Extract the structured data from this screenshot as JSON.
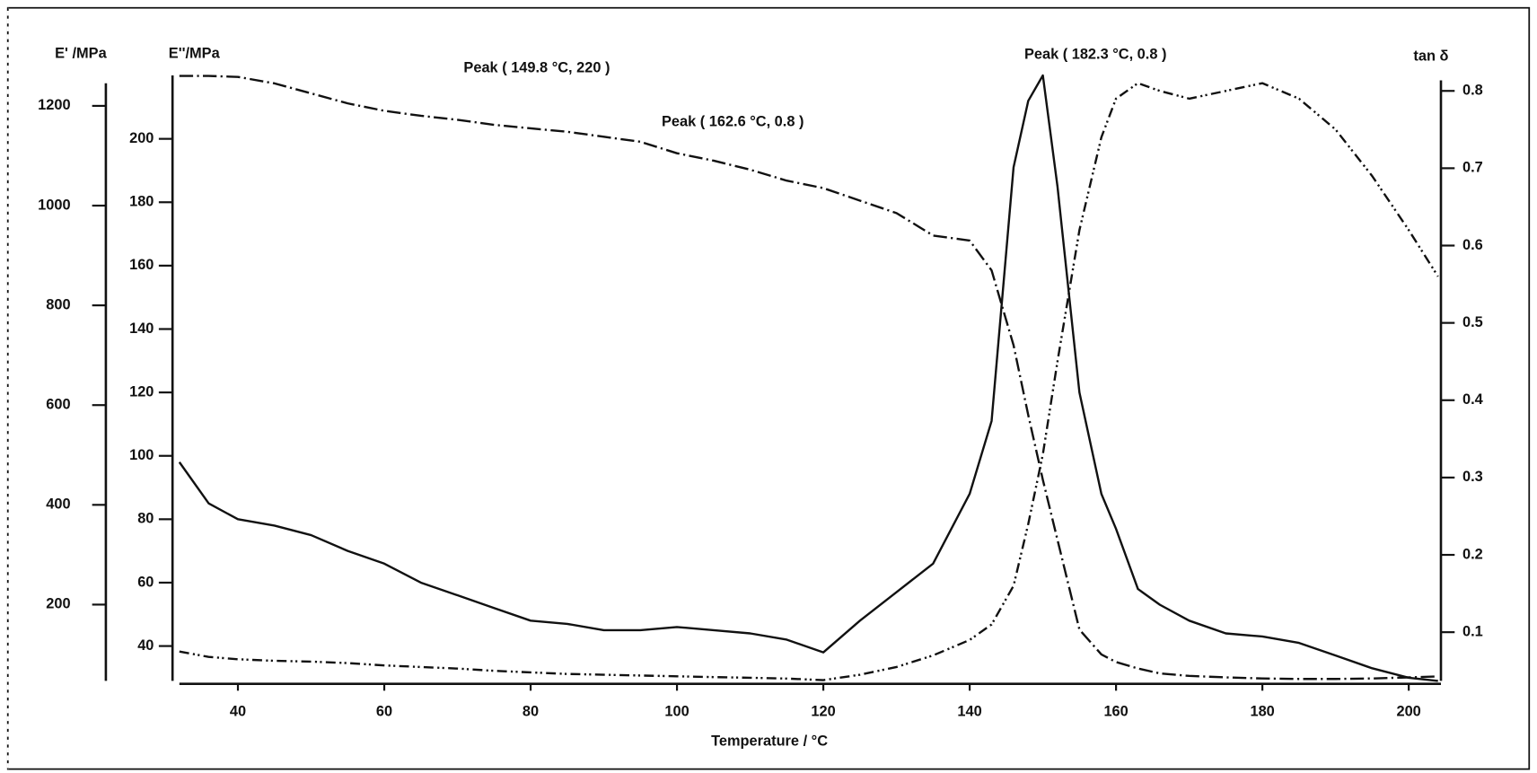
{
  "chart_data": {
    "type": "line",
    "xlabel": "Temperature / °C",
    "ylabel": "E' /MPa",
    "y2label": "E''/MPa",
    "y3label": "tan δ",
    "annotations": [
      "Peak ( 149.8 °C,  220 )",
      "Peak ( 162.6 °C, 0.8 )",
      "Peak ( 182.3 °C, 0.8 )"
    ],
    "xlim": [
      32,
      204.4
    ],
    "xticks": [
      40,
      60,
      80,
      100,
      120,
      140,
      160,
      180,
      200
    ],
    "ylim": [
      47,
      1261
    ],
    "yticks": [
      200,
      400,
      600,
      800,
      1000,
      1200
    ],
    "y2lim": [
      29,
      220
    ],
    "y2ticks": [
      40,
      60,
      80,
      100,
      120,
      140,
      160,
      180,
      200
    ],
    "y3lim": [
      0.037,
      0.82
    ],
    "y3ticks": [
      0.1,
      0.2,
      0.3,
      0.4,
      0.5,
      0.6,
      0.7,
      0.8
    ],
    "x": [
      32,
      36,
      40,
      45,
      50,
      55,
      60,
      65,
      70,
      75,
      80,
      85,
      90,
      95,
      100,
      105,
      110,
      115,
      120,
      125,
      130,
      135,
      140,
      143,
      146,
      148,
      150,
      152,
      155,
      158,
      160,
      163,
      166,
      170,
      175,
      180,
      185,
      190,
      195,
      200,
      204
    ],
    "series": [
      {
        "axis": "y",
        "color": "#111111",
        "style": "dashdot",
        "values": [
          1260,
          1260,
          1258,
          1245,
          1225,
          1205,
          1190,
          1180,
          1172,
          1162,
          1155,
          1148,
          1138,
          1128,
          1105,
          1090,
          1072,
          1050,
          1035,
          1010,
          985,
          940,
          930,
          870,
          720,
          580,
          450,
          330,
          150,
          100,
          85,
          72,
          62,
          57,
          54,
          52,
          51,
          51,
          52,
          54,
          56
        ]
      },
      {
        "axis": "y2",
        "color": "#111111",
        "style": "solid",
        "values": [
          98,
          85,
          80,
          78,
          75,
          70,
          66,
          60,
          56,
          52,
          48,
          47,
          45,
          45,
          46,
          45,
          44,
          42,
          38,
          48,
          57,
          66,
          88,
          111,
          191,
          212,
          220,
          185,
          120,
          88,
          77,
          58,
          53,
          48,
          44,
          43,
          41,
          37,
          33,
          30,
          29
        ]
      },
      {
        "axis": "y3",
        "color": "#111111",
        "style": "dashdotdot",
        "values": [
          0.075,
          0.068,
          0.065,
          0.063,
          0.062,
          0.06,
          0.057,
          0.055,
          0.053,
          0.05,
          0.048,
          0.046,
          0.045,
          0.044,
          0.043,
          0.042,
          0.041,
          0.04,
          0.038,
          0.045,
          0.055,
          0.07,
          0.09,
          0.11,
          0.16,
          0.24,
          0.33,
          0.45,
          0.62,
          0.74,
          0.79,
          0.81,
          0.8,
          0.79,
          0.8,
          0.81,
          0.79,
          0.75,
          0.69,
          0.62,
          0.56
        ]
      }
    ]
  }
}
